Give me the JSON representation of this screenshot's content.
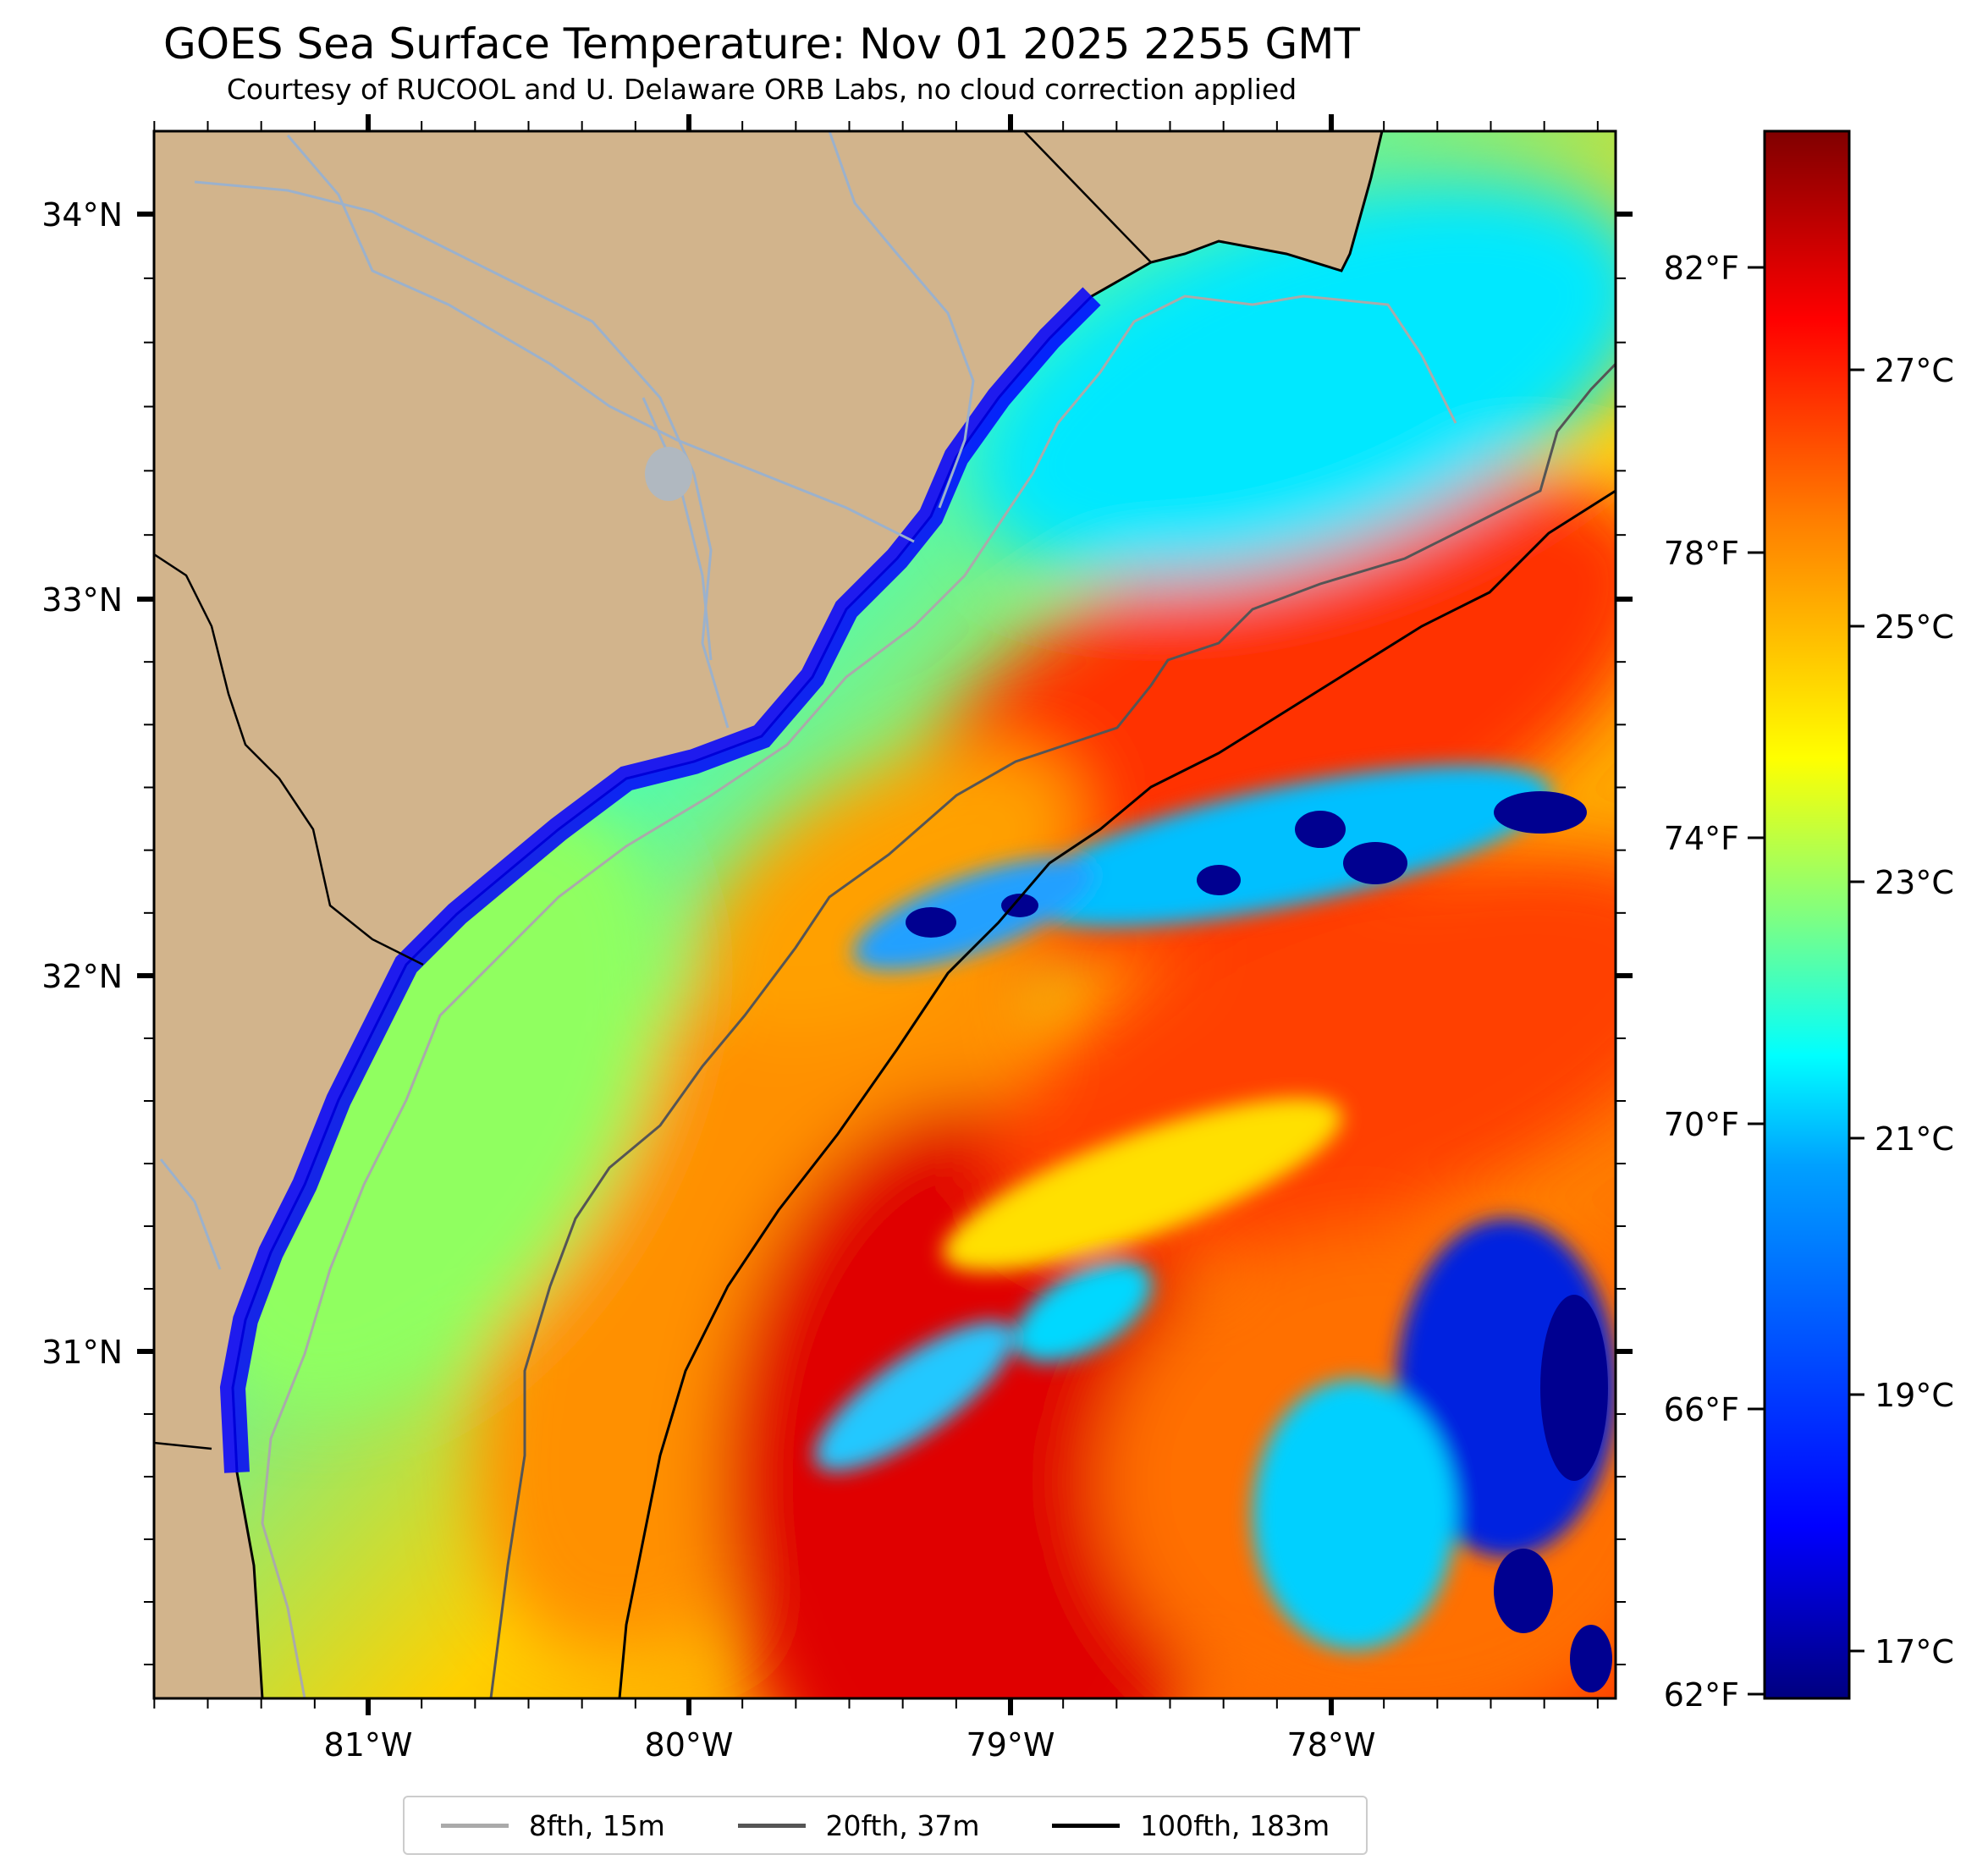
{
  "title": "GOES Sea Surface Temperature: Nov 01 2025 2255 GMT",
  "subtitle": "Courtesy of RUCOOL and U. Delaware ORB Labs, no cloud correction applied",
  "map": {
    "lat_labels": [
      "34°N",
      "33°N",
      "32°N",
      "31°N"
    ],
    "lon_labels": [
      "81°W",
      "80°W",
      "79°W",
      "78°W"
    ],
    "land_color": "#d2b48c",
    "coast_color": "#000000",
    "river_color": "#9bb1cc"
  },
  "colorbar": {
    "colormap": "jet",
    "fahrenheit_labels": [
      "82°F",
      "78°F",
      "74°F",
      "70°F",
      "66°F",
      "62°F"
    ],
    "celsius_labels": [
      "27°C",
      "25°C",
      "23°C",
      "21°C",
      "19°C",
      "17°C"
    ],
    "colors": [
      "#000080",
      "#0000ff",
      "#0080ff",
      "#00ffff",
      "#80ff80",
      "#ffff00",
      "#ff8000",
      "#ff0000",
      "#800000"
    ]
  },
  "legend": {
    "entries": [
      {
        "label": "8fth, 15m",
        "color": "#aaaaaa"
      },
      {
        "label": "20fth, 37m",
        "color": "#555555"
      },
      {
        "label": "100fth, 183m",
        "color": "#000000"
      }
    ]
  }
}
